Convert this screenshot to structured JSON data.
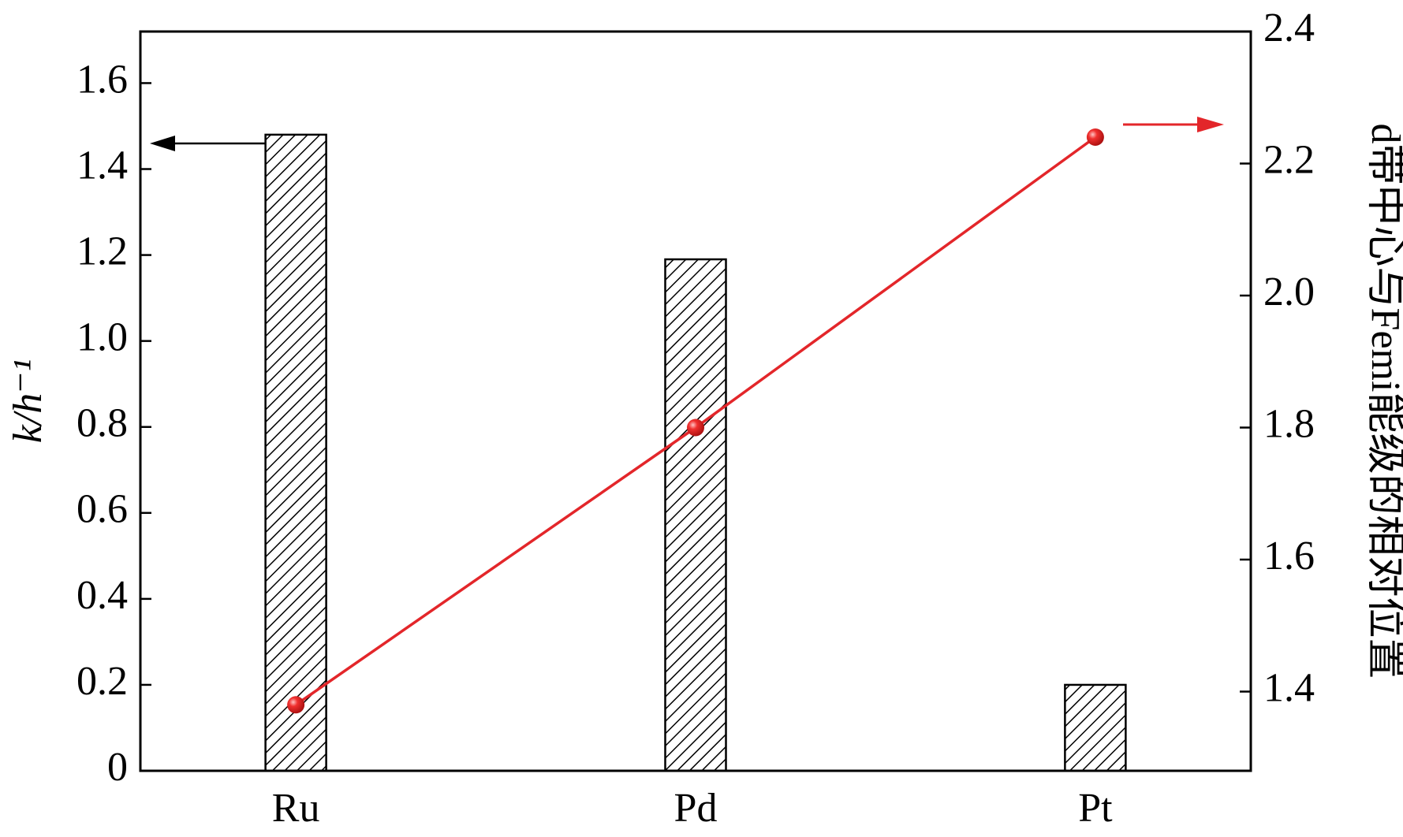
{
  "chart_data": {
    "type": "bar",
    "categories": [
      "Ru",
      "Pd",
      "Pt"
    ],
    "y_label": "k/h⁻¹",
    "y2_label": "d带中心与Femi能级的相对位置",
    "series": [
      {
        "type": "bar",
        "color": "#000000",
        "values": [
          1.48,
          1.19,
          0.2
        ]
      },
      {
        "type": "line",
        "axis": "y2",
        "color": "#e3262a",
        "values": [
          1.38,
          1.8,
          2.24
        ]
      }
    ],
    "ylim": [
      0,
      1.72
    ],
    "yticks": [
      0,
      0.2,
      0.4,
      0.6,
      0.8,
      {
        "value": 1,
        "label": "1.0"
      },
      1.2,
      1.4,
      1.6
    ],
    "y2lim": [
      1.28,
      2.4
    ],
    "y2ticks": [
      1.4,
      1.6,
      1.8,
      {
        "value": 2,
        "label": "2.0"
      },
      2.2,
      2.4
    ]
  }
}
